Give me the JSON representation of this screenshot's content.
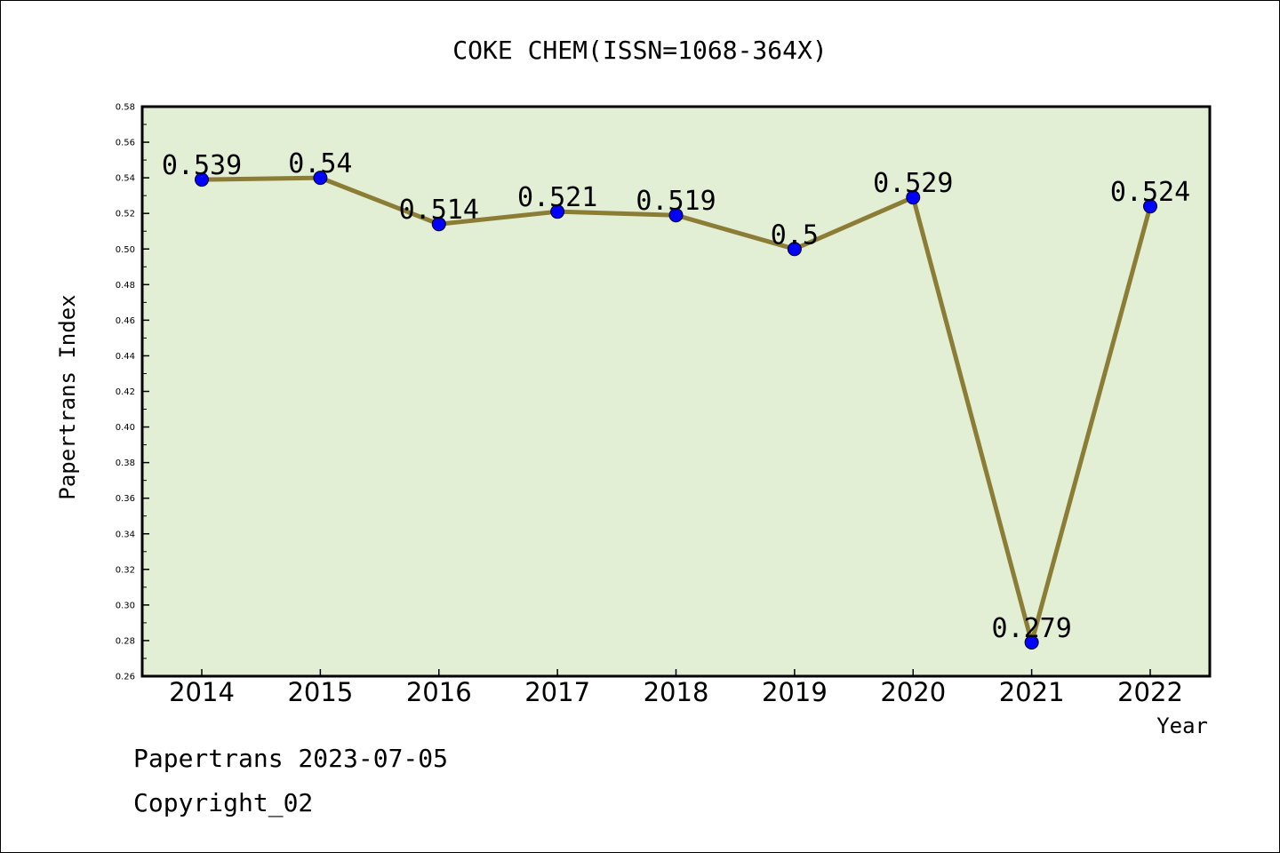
{
  "chart_data": {
    "type": "line",
    "title": "COKE CHEM(ISSN=1068-364X)",
    "xlabel": "Year",
    "ylabel": "Papertrans Index",
    "categories": [
      "2014",
      "2015",
      "2016",
      "2017",
      "2018",
      "2019",
      "2020",
      "2021",
      "2022"
    ],
    "values": [
      0.539,
      0.54,
      0.514,
      0.521,
      0.519,
      0.5,
      0.529,
      0.279,
      0.524
    ],
    "data_labels": [
      "0.539",
      "0.54",
      "0.514",
      "0.521",
      "0.519",
      "0.5",
      "0.529",
      "0.279",
      "0.524"
    ],
    "ylim": [
      0.26,
      0.58
    ],
    "yticks": [
      "0.26",
      "0.28",
      "0.30",
      "0.32",
      "0.34",
      "0.36",
      "0.38",
      "0.40",
      "0.42",
      "0.44",
      "0.46",
      "0.48",
      "0.50",
      "0.52",
      "0.54",
      "0.56",
      "0.58"
    ],
    "grid": false,
    "legend": "none",
    "colors": {
      "plot_background": "#e2efd4",
      "line": "#8b7d35",
      "marker": "#0000ff"
    }
  },
  "footer": {
    "line1": "Papertrans 2023-07-05",
    "line2": "Copyright_02"
  }
}
